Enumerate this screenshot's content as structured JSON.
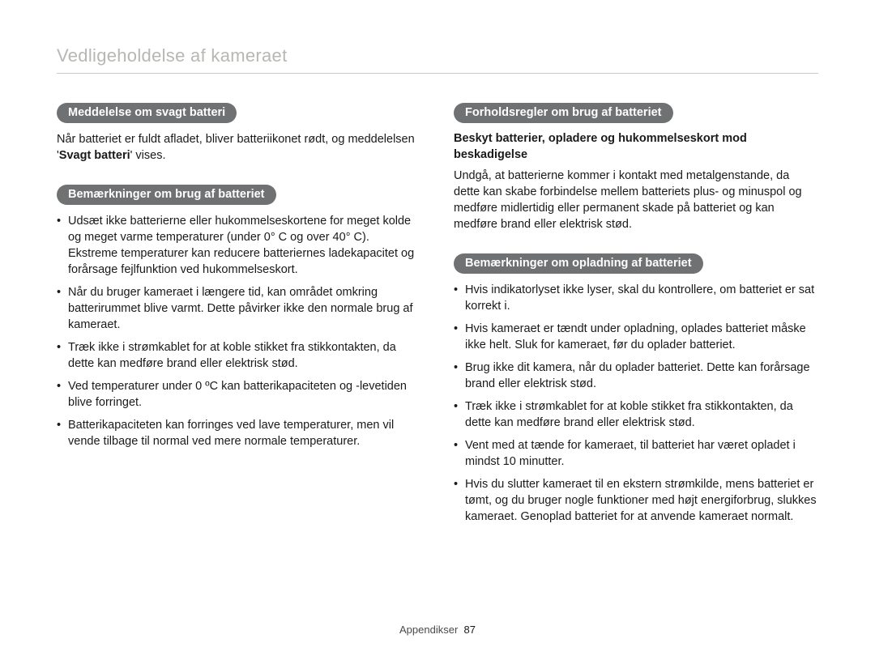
{
  "colors": {
    "pill_bg": "#6f7172",
    "pill_fg": "#ffffff",
    "title_fg": "#b7b7b4",
    "rule": "#c9c9c6",
    "body_fg": "#1a1a1a",
    "page_bg": "#ffffff"
  },
  "title": "Vedligeholdelse af kameraet",
  "left": {
    "sec1": {
      "pill": "Meddelelse om svagt batteri",
      "p1a": "Når batteriet er fuldt afladet, bliver batteriikonet rødt, og meddelelsen '",
      "p1b": "Svagt batteri",
      "p1c": "' vises."
    },
    "sec2": {
      "pill": "Bemærkninger om brug af batteriet",
      "items": [
        "Udsæt ikke batterierne eller hukommelseskortene for meget kolde og meget varme temperaturer (under 0° C og over 40° C). Ekstreme temperaturer kan reducere batteriernes ladekapacitet og forårsage fejlfunktion ved hukommelseskort.",
        "Når du bruger kameraet i længere tid, kan området omkring batterirummet blive varmt. Dette påvirker ikke den normale brug af kameraet.",
        "Træk ikke i strømkablet for at koble stikket fra stikkontakten, da dette kan medføre brand eller elektrisk stød.",
        "Ved temperaturer under 0 ºC kan batterikapaciteten og -levetiden blive forringet.",
        "Batterikapaciteten kan forringes ved lave temperaturer, men vil vende tilbage til normal ved mere normale temperaturer."
      ]
    }
  },
  "right": {
    "sec1": {
      "pill": "Forholdsregler om brug af batteriet",
      "subhead": "Beskyt batterier, opladere og hukommelseskort mod beskadigelse",
      "para": "Undgå, at batterierne kommer i kontakt med metalgenstande, da dette kan skabe forbindelse mellem batteriets plus- og minuspol og medføre midlertidig eller permanent skade på batteriet og kan medføre brand eller elektrisk stød."
    },
    "sec2": {
      "pill": "Bemærkninger om opladning af batteriet",
      "items": [
        "Hvis indikatorlyset ikke lyser, skal du kontrollere, om batteriet er sat korrekt i.",
        "Hvis kameraet er tændt under opladning, oplades batteriet måske ikke helt. Sluk for kameraet, før du oplader batteriet.",
        "Brug ikke dit kamera, når du oplader batteriet. Dette kan forårsage brand eller elektrisk stød.",
        "Træk ikke i strømkablet for at koble stikket fra stikkontakten, da dette kan medføre brand eller elektrisk stød.",
        "Vent med at tænde for kameraet, til batteriet har været opladet i mindst 10 minutter.",
        "Hvis du slutter kameraet til en ekstern strømkilde, mens batteriet er tømt, og du bruger nogle funktioner med højt energiforbrug, slukkes kameraet. Genoplad batteriet for at anvende kameraet normalt."
      ]
    }
  },
  "footer": {
    "label": "Appendikser",
    "page": "87"
  }
}
